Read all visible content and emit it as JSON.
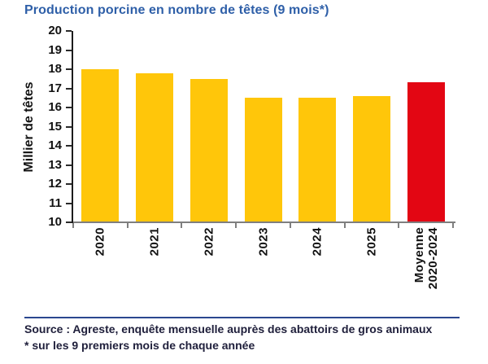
{
  "colors": {
    "title_blue": "#2E5FA8",
    "bar_yellow": "#FFC60A",
    "bar_red": "#E30613",
    "axis_black": "#1c1c1c",
    "baseline_gray": "#7f7f7f",
    "divider_navy": "#2B478F",
    "footer_text": "#20203C"
  },
  "chart_data": {
    "type": "bar",
    "title": "Production porcine en nombre de têtes (9 mois*)",
    "ylabel": "Millier de têtes",
    "xlabel": "",
    "ylim": [
      10,
      20
    ],
    "ytick_step": 1,
    "grid": false,
    "legend": null,
    "categories": [
      "2020",
      "2021",
      "2022",
      "2023",
      "2024",
      "2025",
      "Moyenne\n2020-2024"
    ],
    "values": [
      18.0,
      17.8,
      17.5,
      16.5,
      16.5,
      16.6,
      17.3
    ],
    "bar_colors": [
      "#FFC60A",
      "#FFC60A",
      "#FFC60A",
      "#FFC60A",
      "#FFC60A",
      "#FFC60A",
      "#E30613"
    ],
    "highlight_category": "Moyenne 2020-2024"
  },
  "footer": {
    "source_line": "Source : Agreste, enquête mensuelle auprès des abattoirs de gros animaux",
    "note_line": "* sur les 9 premiers mois de chaque année"
  }
}
